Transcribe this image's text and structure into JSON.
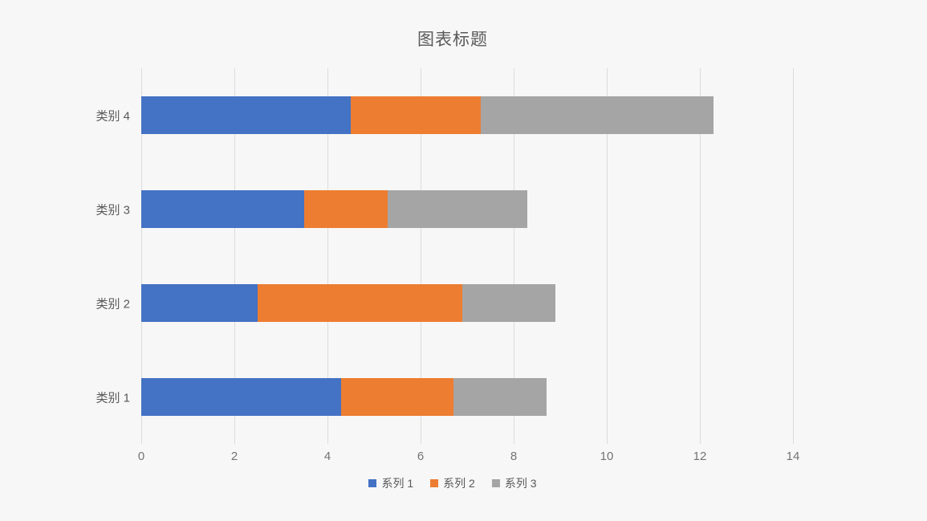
{
  "title": "图表标题",
  "colors": {
    "background": "#F7F7F7",
    "gridline": "#DCDCDC",
    "text": "#595959",
    "tick_text": "#737373"
  },
  "chart_data": {
    "type": "bar",
    "orientation": "horizontal",
    "stacked": true,
    "title": "图表标题",
    "categories": [
      "类别 1",
      "类别 2",
      "类别 3",
      "类别 4"
    ],
    "series": [
      {
        "name": "系列 1",
        "color": "#4472C4",
        "values": [
          4.3,
          2.5,
          3.5,
          4.5
        ]
      },
      {
        "name": "系列 2",
        "color": "#ED7D31",
        "values": [
          2.4,
          4.4,
          1.8,
          2.8
        ]
      },
      {
        "name": "系列 3",
        "color": "#A5A5A5",
        "values": [
          2.0,
          2.0,
          3.0,
          5.0
        ]
      }
    ],
    "totals": [
      8.7,
      8.9,
      8.3,
      12.3
    ],
    "xlim": [
      0,
      14
    ],
    "xticks": [
      0,
      2,
      4,
      6,
      8,
      10,
      12,
      14
    ],
    "grid": true,
    "legend_position": "bottom",
    "first_category_at_bottom": true
  }
}
